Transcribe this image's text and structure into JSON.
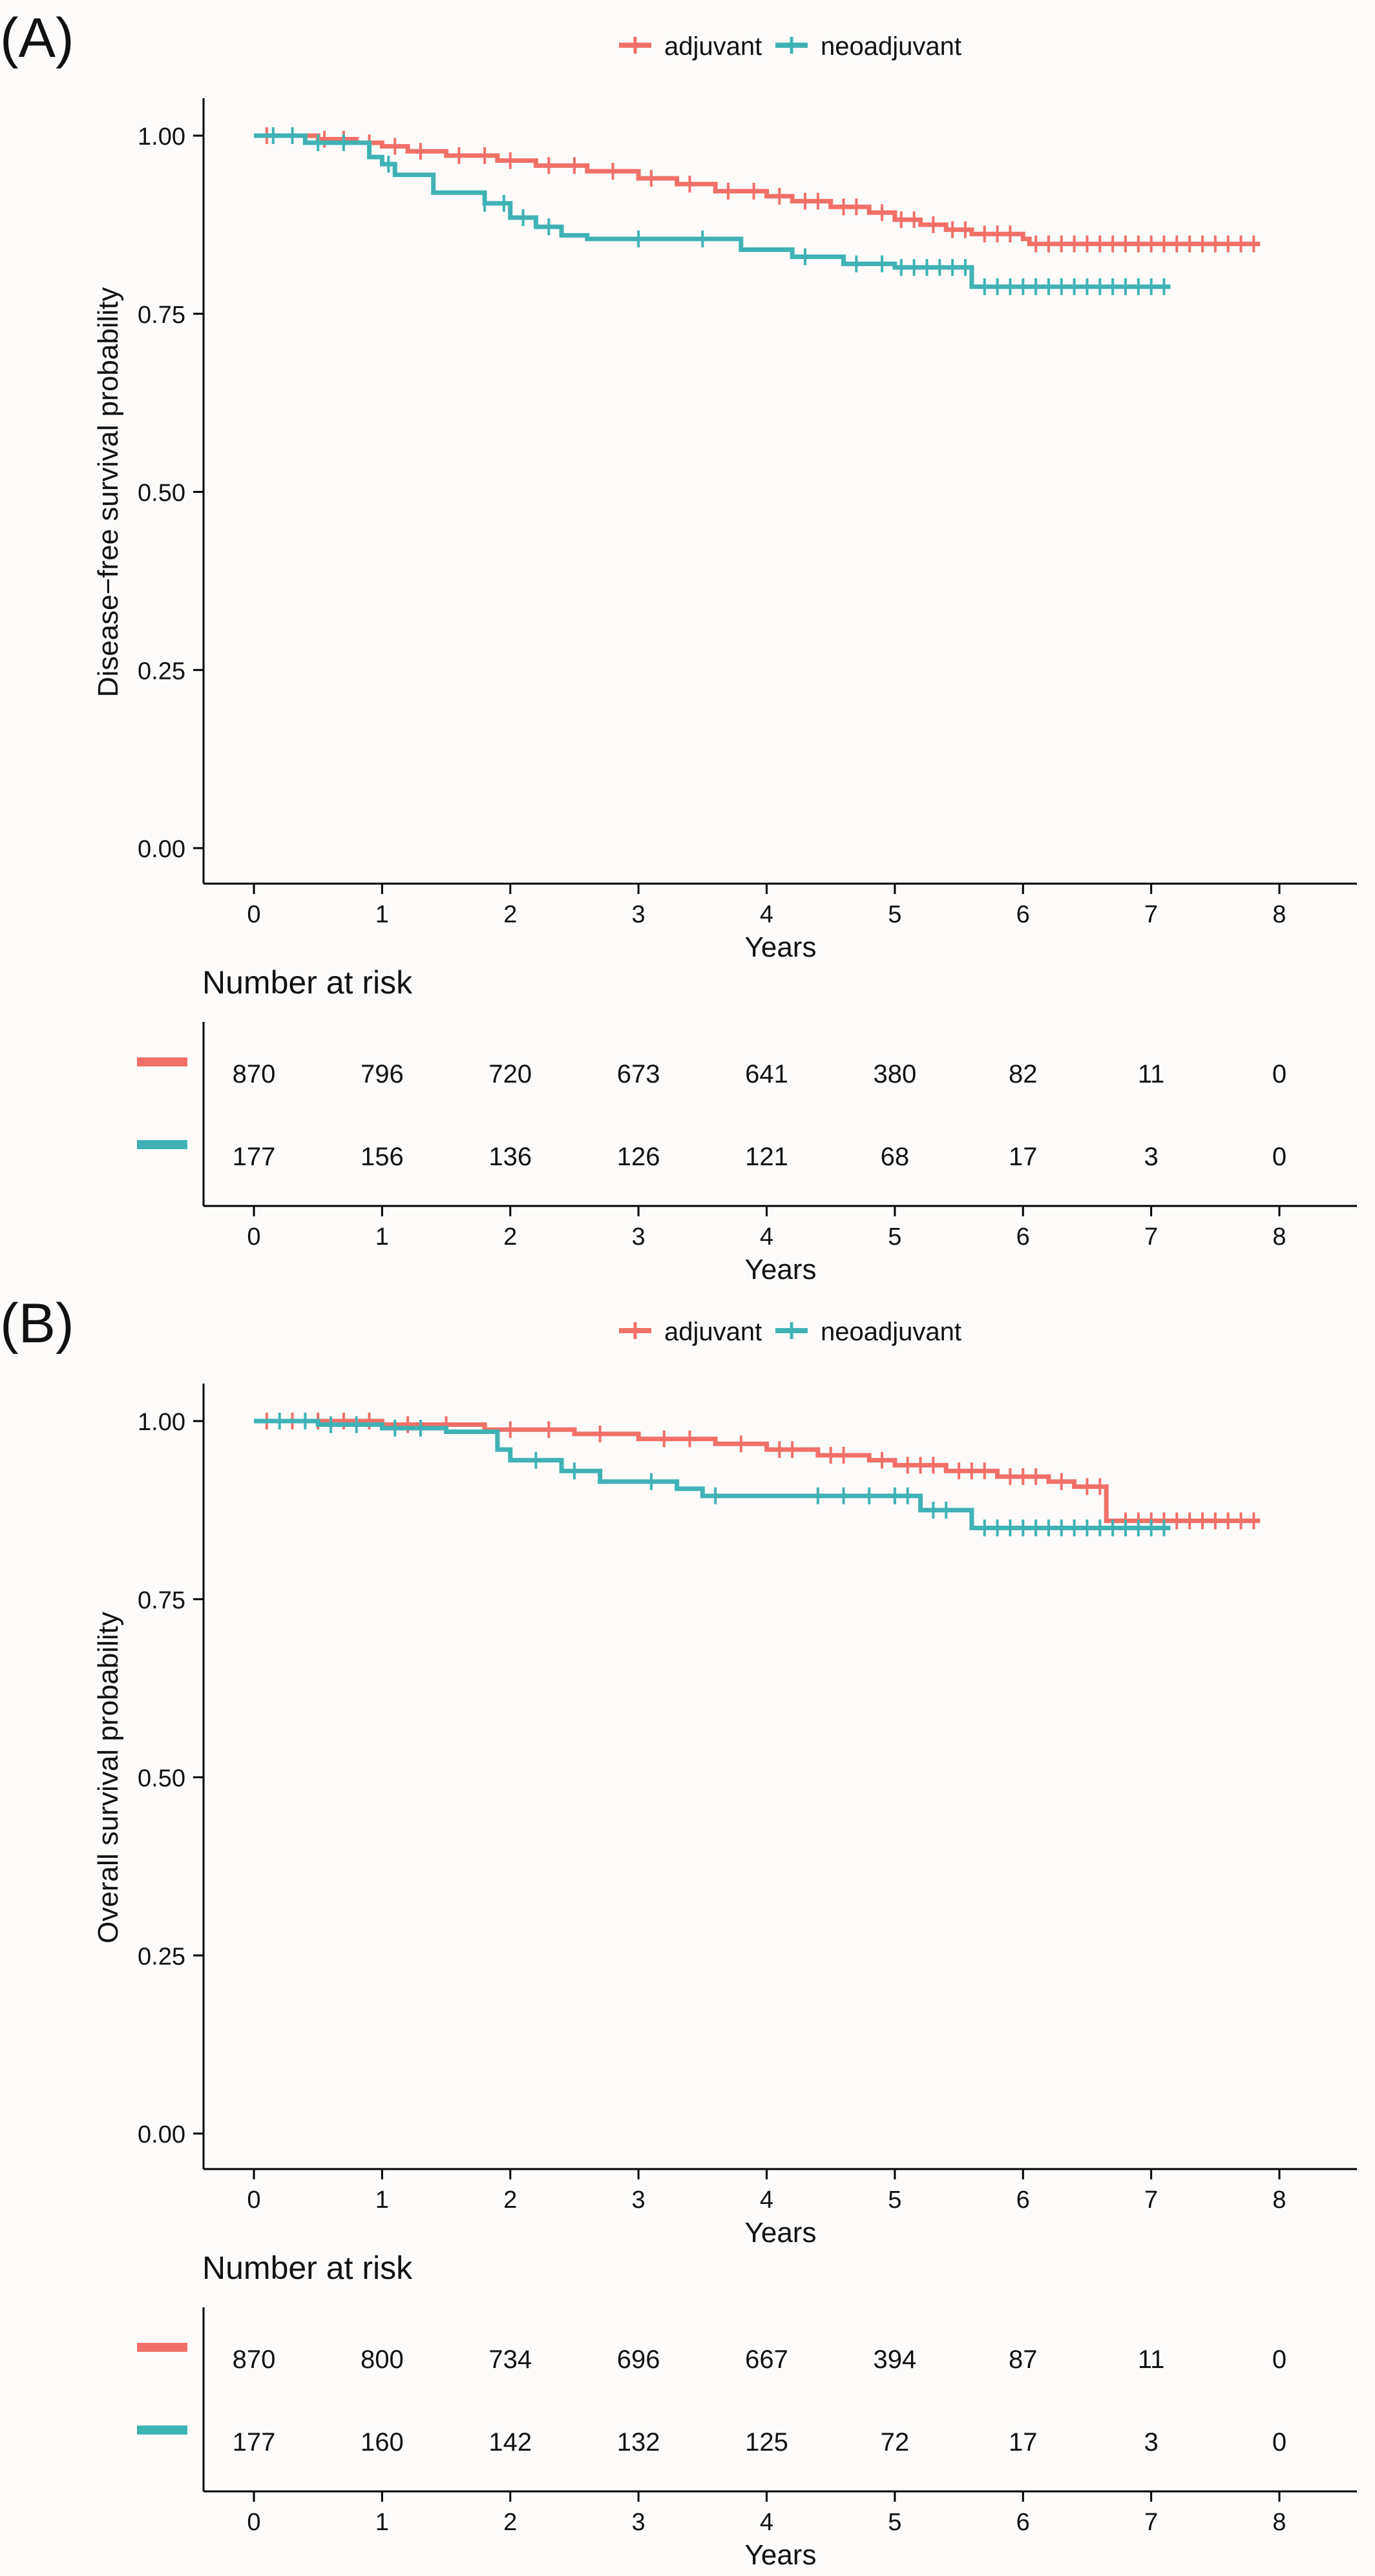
{
  "legend_labels": [
    "adjuvant",
    "neoadjuvant"
  ],
  "colors": {
    "adjuvant": "#f07068",
    "neoadjuvant": "#3fb2b4",
    "axis": "#000000",
    "text": "#111111"
  },
  "chart_data": [
    {
      "type": "line",
      "panel_label": "(A)",
      "title": "",
      "xlabel": "Years",
      "ylabel": "Disease−free survival probability",
      "xlim": [
        0,
        8
      ],
      "ylim": [
        0,
        1
      ],
      "x_ticks": [
        "0",
        "1",
        "2",
        "3",
        "4",
        "5",
        "6",
        "7",
        "8"
      ],
      "y_ticks": [
        "0.00",
        "0.25",
        "0.50",
        "0.75",
        "1.00"
      ],
      "legend_position": "top",
      "grid": false,
      "series": [
        {
          "name": "adjuvant",
          "steps": [
            [
              0,
              1.0
            ],
            [
              0.5,
              0.995
            ],
            [
              0.8,
              0.99
            ],
            [
              1.0,
              0.985
            ],
            [
              1.2,
              0.978
            ],
            [
              1.5,
              0.972
            ],
            [
              1.9,
              0.965
            ],
            [
              2.2,
              0.958
            ],
            [
              2.6,
              0.95
            ],
            [
              3.0,
              0.94
            ],
            [
              3.3,
              0.932
            ],
            [
              3.6,
              0.922
            ],
            [
              4.0,
              0.915
            ],
            [
              4.2,
              0.908
            ],
            [
              4.5,
              0.9
            ],
            [
              4.8,
              0.892
            ],
            [
              5.0,
              0.882
            ],
            [
              5.2,
              0.875
            ],
            [
              5.4,
              0.868
            ],
            [
              5.6,
              0.862
            ],
            [
              6.0,
              0.855
            ],
            [
              6.05,
              0.848
            ],
            [
              7.85,
              0.848
            ]
          ],
          "censored": [
            0.1,
            0.3,
            0.55,
            0.7,
            0.9,
            1.1,
            1.3,
            1.6,
            1.8,
            2.0,
            2.3,
            2.5,
            2.8,
            3.1,
            3.4,
            3.7,
            3.9,
            4.1,
            4.3,
            4.4,
            4.6,
            4.7,
            4.9,
            5.05,
            5.15,
            5.3,
            5.45,
            5.55,
            5.7,
            5.8,
            5.9,
            6.1,
            6.2,
            6.3,
            6.4,
            6.5,
            6.6,
            6.7,
            6.8,
            6.9,
            7.0,
            7.1,
            7.2,
            7.3,
            7.4,
            7.5,
            7.6,
            7.7,
            7.8
          ]
        },
        {
          "name": "neoadjuvant",
          "steps": [
            [
              0,
              1.0
            ],
            [
              0.4,
              0.99
            ],
            [
              0.9,
              0.97
            ],
            [
              1.0,
              0.96
            ],
            [
              1.1,
              0.945
            ],
            [
              1.4,
              0.92
            ],
            [
              1.8,
              0.905
            ],
            [
              2.0,
              0.885
            ],
            [
              2.2,
              0.872
            ],
            [
              2.4,
              0.86
            ],
            [
              2.6,
              0.855
            ],
            [
              3.8,
              0.84
            ],
            [
              4.2,
              0.83
            ],
            [
              4.6,
              0.82
            ],
            [
              5.0,
              0.815
            ],
            [
              5.6,
              0.788
            ],
            [
              7.15,
              0.788
            ]
          ],
          "censored": [
            0.15,
            0.3,
            0.5,
            0.7,
            1.05,
            1.8,
            1.95,
            2.1,
            2.3,
            3.0,
            3.5,
            4.3,
            4.7,
            4.9,
            5.05,
            5.15,
            5.25,
            5.35,
            5.45,
            5.55,
            5.7,
            5.8,
            5.9,
            6.0,
            6.1,
            6.2,
            6.3,
            6.4,
            6.5,
            6.6,
            6.7,
            6.8,
            6.9,
            7.0,
            7.1
          ]
        }
      ],
      "risk_table": {
        "title": "Number at risk",
        "x": [
          0,
          1,
          2,
          3,
          4,
          5,
          6,
          7,
          8
        ],
        "rows": [
          {
            "name": "adjuvant",
            "values": [
              "870",
              "796",
              "720",
              "673",
              "641",
              "380",
              "82",
              "11",
              "0"
            ]
          },
          {
            "name": "neoadjuvant",
            "values": [
              "177",
              "156",
              "136",
              "126",
              "121",
              "68",
              "17",
              "3",
              "0"
            ]
          }
        ],
        "xlabel": "Years"
      }
    },
    {
      "type": "line",
      "panel_label": "(B)",
      "title": "",
      "xlabel": "Years",
      "ylabel": "Overall survival probability",
      "xlim": [
        0,
        8
      ],
      "ylim": [
        0,
        1
      ],
      "x_ticks": [
        "0",
        "1",
        "2",
        "3",
        "4",
        "5",
        "6",
        "7",
        "8"
      ],
      "y_ticks": [
        "0.00",
        "0.25",
        "0.50",
        "0.75",
        "1.00"
      ],
      "legend_position": "top",
      "grid": false,
      "series": [
        {
          "name": "adjuvant",
          "steps": [
            [
              0,
              1.0
            ],
            [
              1.0,
              0.995
            ],
            [
              1.8,
              0.988
            ],
            [
              2.5,
              0.982
            ],
            [
              3.0,
              0.975
            ],
            [
              3.6,
              0.968
            ],
            [
              4.0,
              0.96
            ],
            [
              4.4,
              0.952
            ],
            [
              4.8,
              0.945
            ],
            [
              5.0,
              0.938
            ],
            [
              5.4,
              0.93
            ],
            [
              5.8,
              0.922
            ],
            [
              6.2,
              0.915
            ],
            [
              6.4,
              0.908
            ],
            [
              6.65,
              0.86
            ],
            [
              7.85,
              0.86
            ]
          ],
          "censored": [
            0.1,
            0.3,
            0.5,
            0.7,
            0.9,
            1.2,
            1.5,
            2.0,
            2.3,
            2.7,
            3.2,
            3.4,
            3.8,
            4.1,
            4.2,
            4.5,
            4.6,
            4.9,
            5.1,
            5.2,
            5.3,
            5.5,
            5.6,
            5.7,
            5.9,
            6.0,
            6.1,
            6.3,
            6.5,
            6.6,
            6.8,
            6.9,
            7.0,
            7.1,
            7.2,
            7.3,
            7.4,
            7.5,
            7.6,
            7.7,
            7.8
          ]
        },
        {
          "name": "neoadjuvant",
          "steps": [
            [
              0,
              1.0
            ],
            [
              0.5,
              0.995
            ],
            [
              1.0,
              0.99
            ],
            [
              1.5,
              0.985
            ],
            [
              1.9,
              0.96
            ],
            [
              2.0,
              0.945
            ],
            [
              2.4,
              0.93
            ],
            [
              2.7,
              0.915
            ],
            [
              3.3,
              0.905
            ],
            [
              3.5,
              0.895
            ],
            [
              5.2,
              0.875
            ],
            [
              5.6,
              0.85
            ],
            [
              7.15,
              0.85
            ]
          ],
          "censored": [
            0.2,
            0.4,
            0.6,
            0.8,
            1.1,
            1.3,
            2.2,
            2.5,
            3.1,
            3.6,
            4.4,
            4.6,
            4.8,
            5.0,
            5.1,
            5.3,
            5.4,
            5.7,
            5.8,
            5.9,
            6.0,
            6.1,
            6.2,
            6.3,
            6.4,
            6.5,
            6.6,
            6.7,
            6.8,
            6.9,
            7.0,
            7.1
          ]
        }
      ],
      "risk_table": {
        "title": "Number at risk",
        "x": [
          0,
          1,
          2,
          3,
          4,
          5,
          6,
          7,
          8
        ],
        "rows": [
          {
            "name": "adjuvant",
            "values": [
              "870",
              "800",
              "734",
              "696",
              "667",
              "394",
              "87",
              "11",
              "0"
            ]
          },
          {
            "name": "neoadjuvant",
            "values": [
              "177",
              "160",
              "142",
              "132",
              "125",
              "72",
              "17",
              "3",
              "0"
            ]
          }
        ],
        "xlabel": "Years"
      }
    }
  ]
}
